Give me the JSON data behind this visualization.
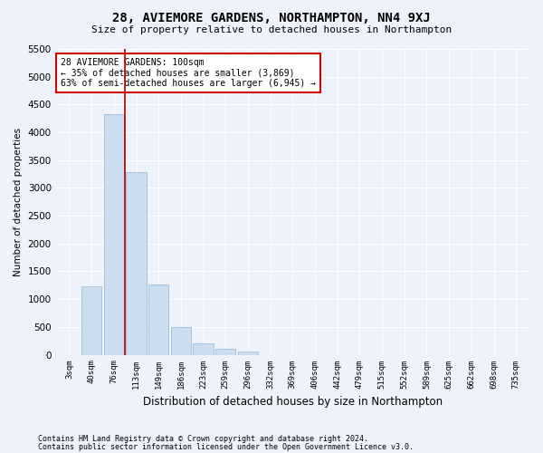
{
  "title1": "28, AVIEMORE GARDENS, NORTHAMPTON, NN4 9XJ",
  "title2": "Size of property relative to detached houses in Northampton",
  "xlabel": "Distribution of detached houses by size in Northampton",
  "ylabel": "Number of detached properties",
  "footnote1": "Contains HM Land Registry data © Crown copyright and database right 2024.",
  "footnote2": "Contains public sector information licensed under the Open Government Licence v3.0.",
  "annotation_line1": "28 AVIEMORE GARDENS: 100sqm",
  "annotation_line2": "← 35% of detached houses are smaller (3,869)",
  "annotation_line3": "63% of semi-detached houses are larger (6,945) →",
  "bar_color": "#ccddf0",
  "bar_edge_color": "#a0bcd8",
  "line_color": "#aa0000",
  "categories": [
    "3sqm",
    "40sqm",
    "76sqm",
    "113sqm",
    "149sqm",
    "186sqm",
    "223sqm",
    "259sqm",
    "296sqm",
    "332sqm",
    "369sqm",
    "406sqm",
    "442sqm",
    "479sqm",
    "515sqm",
    "552sqm",
    "589sqm",
    "625sqm",
    "662sqm",
    "698sqm",
    "735sqm"
  ],
  "values": [
    0,
    1230,
    4330,
    3290,
    1260,
    490,
    210,
    100,
    65,
    0,
    0,
    0,
    0,
    0,
    0,
    0,
    0,
    0,
    0,
    0,
    0
  ],
  "ylim": [
    0,
    5500
  ],
  "yticks": [
    0,
    500,
    1000,
    1500,
    2000,
    2500,
    3000,
    3500,
    4000,
    4500,
    5000,
    5500
  ],
  "vline_x": 2.5,
  "background_color": "#eef2fa",
  "grid_color": "#ffffff"
}
